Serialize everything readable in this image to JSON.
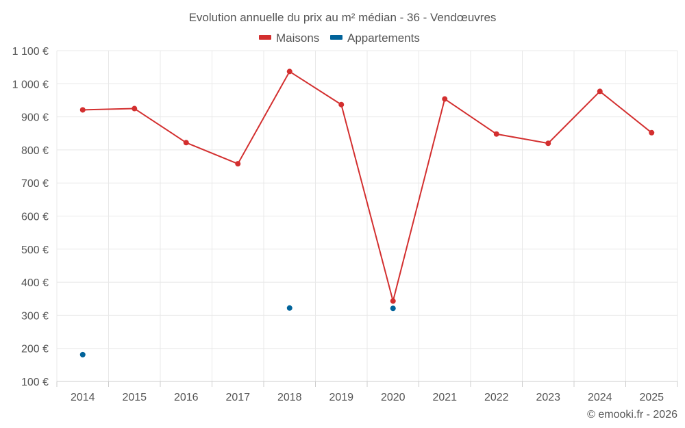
{
  "chart_data": {
    "type": "line",
    "title": "Evolution annuelle du prix au m² médian - 36 - Vendœuvres",
    "categories": [
      "2014",
      "2015",
      "2016",
      "2017",
      "2018",
      "2019",
      "2020",
      "2021",
      "2022",
      "2023",
      "2024",
      "2025"
    ],
    "series": [
      {
        "name": "Maisons",
        "color": "#d32f2f",
        "values": [
          921,
          925,
          822,
          758,
          1037,
          937,
          343,
          954,
          848,
          820,
          977,
          852
        ]
      },
      {
        "name": "Appartements",
        "color": "#01639a",
        "values": [
          181,
          null,
          null,
          null,
          322,
          null,
          321,
          null,
          null,
          null,
          null,
          null
        ]
      }
    ],
    "ylim": [
      100,
      1100
    ],
    "yticks": [
      100,
      200,
      300,
      400,
      500,
      600,
      700,
      800,
      900,
      1000,
      1100
    ],
    "ytick_labels": [
      "100 €",
      "200 €",
      "300 €",
      "400 €",
      "500 €",
      "600 €",
      "700 €",
      "800 €",
      "900 €",
      "1 000 €",
      "1 100 €"
    ],
    "xlabel": "",
    "ylabel": "",
    "grid": true,
    "legend_position": "top-center",
    "credit": "© emooki.fr - 2026"
  }
}
